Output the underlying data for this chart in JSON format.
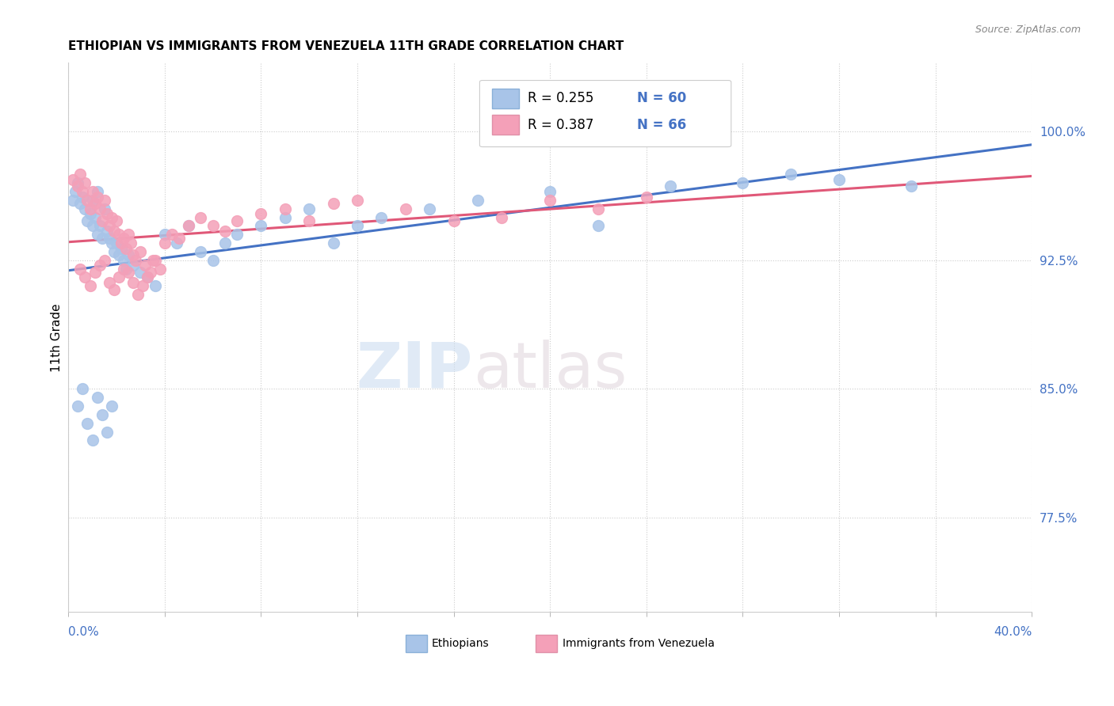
{
  "title": "ETHIOPIAN VS IMMIGRANTS FROM VENEZUELA 11TH GRADE CORRELATION CHART",
  "source": "Source: ZipAtlas.com",
  "ylabel": "11th Grade",
  "ytick_labels": [
    "77.5%",
    "85.0%",
    "92.5%",
    "100.0%"
  ],
  "ytick_values": [
    0.775,
    0.85,
    0.925,
    1.0
  ],
  "xlim": [
    0.0,
    0.4
  ],
  "ylim": [
    0.72,
    1.04
  ],
  "legend": {
    "R1": "0.255",
    "N1": "60",
    "R2": "0.387",
    "N2": "66"
  },
  "blue_scatter": "#a8c4e8",
  "pink_scatter": "#f4a0b8",
  "trend_blue": "#4472c4",
  "trend_pink": "#e05878",
  "ethiopians_x": [
    0.002,
    0.003,
    0.004,
    0.005,
    0.006,
    0.007,
    0.008,
    0.009,
    0.01,
    0.01,
    0.011,
    0.012,
    0.012,
    0.013,
    0.014,
    0.015,
    0.016,
    0.017,
    0.018,
    0.019,
    0.02,
    0.021,
    0.022,
    0.023,
    0.024,
    0.025,
    0.027,
    0.03,
    0.033,
    0.036,
    0.04,
    0.045,
    0.05,
    0.055,
    0.06,
    0.065,
    0.07,
    0.08,
    0.09,
    0.1,
    0.11,
    0.12,
    0.13,
    0.15,
    0.17,
    0.2,
    0.22,
    0.25,
    0.28,
    0.3,
    0.32,
    0.35,
    0.004,
    0.006,
    0.008,
    0.01,
    0.012,
    0.014,
    0.016,
    0.018
  ],
  "ethiopians_y": [
    0.96,
    0.965,
    0.97,
    0.958,
    0.962,
    0.955,
    0.948,
    0.952,
    0.945,
    0.96,
    0.95,
    0.94,
    0.965,
    0.945,
    0.938,
    0.955,
    0.942,
    0.938,
    0.935,
    0.93,
    0.935,
    0.928,
    0.932,
    0.925,
    0.92,
    0.928,
    0.922,
    0.918,
    0.915,
    0.91,
    0.94,
    0.935,
    0.945,
    0.93,
    0.925,
    0.935,
    0.94,
    0.945,
    0.95,
    0.955,
    0.935,
    0.945,
    0.95,
    0.955,
    0.96,
    0.965,
    0.945,
    0.968,
    0.97,
    0.975,
    0.972,
    0.968,
    0.84,
    0.85,
    0.83,
    0.82,
    0.845,
    0.835,
    0.825,
    0.84
  ],
  "venezuela_x": [
    0.002,
    0.004,
    0.005,
    0.006,
    0.007,
    0.008,
    0.009,
    0.01,
    0.011,
    0.012,
    0.013,
    0.014,
    0.015,
    0.016,
    0.017,
    0.018,
    0.019,
    0.02,
    0.021,
    0.022,
    0.023,
    0.024,
    0.025,
    0.026,
    0.027,
    0.028,
    0.03,
    0.032,
    0.034,
    0.036,
    0.038,
    0.04,
    0.043,
    0.046,
    0.05,
    0.055,
    0.06,
    0.065,
    0.07,
    0.08,
    0.09,
    0.1,
    0.11,
    0.12,
    0.14,
    0.16,
    0.18,
    0.2,
    0.22,
    0.24,
    0.005,
    0.007,
    0.009,
    0.011,
    0.013,
    0.015,
    0.017,
    0.019,
    0.021,
    0.023,
    0.025,
    0.027,
    0.029,
    0.031,
    0.033,
    0.035
  ],
  "venezuela_y": [
    0.972,
    0.968,
    0.975,
    0.965,
    0.97,
    0.96,
    0.955,
    0.965,
    0.958,
    0.962,
    0.955,
    0.948,
    0.96,
    0.952,
    0.945,
    0.95,
    0.942,
    0.948,
    0.94,
    0.935,
    0.938,
    0.932,
    0.94,
    0.935,
    0.928,
    0.925,
    0.93,
    0.922,
    0.918,
    0.925,
    0.92,
    0.935,
    0.94,
    0.938,
    0.945,
    0.95,
    0.945,
    0.942,
    0.948,
    0.952,
    0.955,
    0.948,
    0.958,
    0.96,
    0.955,
    0.948,
    0.95,
    0.96,
    0.955,
    0.962,
    0.92,
    0.915,
    0.91,
    0.918,
    0.922,
    0.925,
    0.912,
    0.908,
    0.915,
    0.92,
    0.918,
    0.912,
    0.905,
    0.91,
    0.915,
    0.925
  ]
}
